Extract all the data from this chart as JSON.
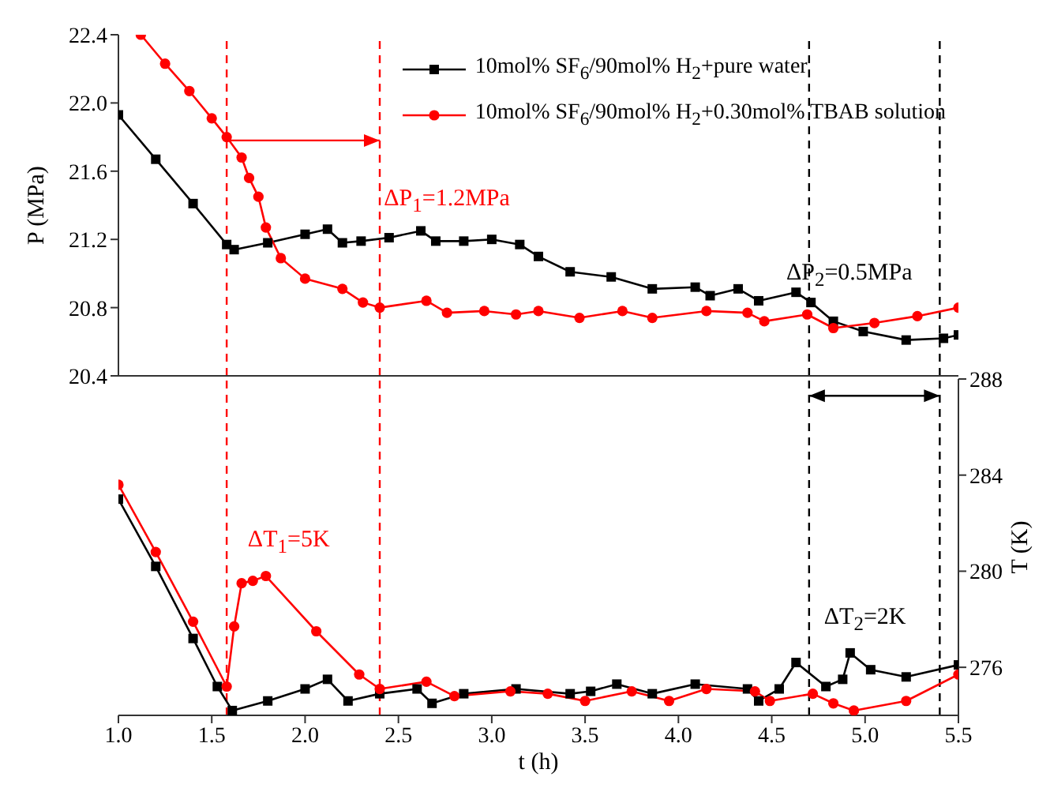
{
  "chart_data": [
    {
      "type": "line",
      "ylabel": "P (MPa)",
      "xlim": [
        1.0,
        5.5
      ],
      "xticks": [
        1,
        1.5,
        2,
        2.5,
        3,
        3.5,
        4,
        4.5,
        5,
        5.5
      ],
      "ylim": [
        20.4,
        22.4
      ],
      "yticks": [
        20.4,
        20.8,
        21.2,
        21.6,
        {
          "value": 22,
          "label": "22.0"
        },
        22.4
      ],
      "tick_labels": "y",
      "legend": "top right",
      "line_style": "solid",
      "series": [
        {
          "name": "10mol% SF$_{6}$/90mol% H$_{2}$+pure water",
          "color": "#000000",
          "marker": "square",
          "x": [
            1.0,
            1.2,
            1.4,
            1.58,
            1.62,
            1.8,
            2.0,
            2.12,
            2.2,
            2.3,
            2.45,
            2.62,
            2.7,
            2.85,
            3.0,
            3.15,
            3.25,
            3.42,
            3.64,
            3.86,
            4.09,
            4.17,
            4.32,
            4.43,
            4.63,
            4.71,
            4.83,
            4.99,
            5.22,
            5.42,
            5.5
          ],
          "values": [
            21.93,
            21.67,
            21.41,
            21.17,
            21.14,
            21.18,
            21.23,
            21.26,
            21.18,
            21.19,
            21.21,
            21.25,
            21.19,
            21.19,
            21.2,
            21.17,
            21.1,
            21.01,
            20.98,
            20.91,
            20.92,
            20.87,
            20.91,
            20.84,
            20.89,
            20.83,
            20.72,
            20.66,
            20.61,
            20.62,
            20.64
          ]
        },
        {
          "name": "10mol% SF$_{6}$/90mol% H$_{2}$+0.30mol% TBAB solution",
          "color": "#ff0000",
          "marker": "circle",
          "x": [
            1.12,
            1.25,
            1.38,
            1.5,
            1.58,
            1.66,
            1.7,
            1.75,
            1.79,
            1.87,
            2.0,
            2.2,
            2.31,
            2.4,
            2.65,
            2.76,
            2.96,
            3.13,
            3.25,
            3.47,
            3.7,
            3.86,
            4.15,
            4.37,
            4.46,
            4.69,
            4.83,
            5.05,
            5.28,
            5.5
          ],
          "values": [
            22.4,
            22.23,
            22.07,
            21.91,
            21.8,
            21.68,
            21.56,
            21.45,
            21.27,
            21.09,
            20.97,
            20.91,
            20.83,
            20.8,
            20.84,
            20.77,
            20.78,
            20.76,
            20.78,
            20.74,
            20.78,
            20.74,
            20.78,
            20.77,
            20.72,
            20.76,
            20.68,
            20.71,
            20.75,
            20.8
          ]
        }
      ],
      "ref_lines": [
        {
          "axis": "x",
          "value": 1.58,
          "color": "#ff0000",
          "line_style": "dashed"
        },
        {
          "axis": "x",
          "value": 2.4,
          "color": "#ff0000",
          "line_style": "dashed"
        },
        {
          "axis": "x",
          "value": 4.7,
          "color": "#000000",
          "line_style": "dashed"
        },
        {
          "axis": "x",
          "value": 5.4,
          "color": "#000000",
          "line_style": "dashed"
        }
      ],
      "annotations": [
        "ΔP$_{1}$=1.2MPa",
        "ΔP$_{2}$=0.5MPa"
      ]
    },
    {
      "type": "line",
      "xlabel": "t (h)",
      "y2label": "T (K)",
      "xlim": [
        1.0,
        5.5
      ],
      "xticks": [
        {
          "value": 1,
          "label": "1.0"
        },
        1.5,
        {
          "value": 2,
          "label": "2.0"
        },
        2.5,
        {
          "value": 3,
          "label": "3.0"
        },
        3.5,
        {
          "value": 4,
          "label": "4.0"
        },
        4.5,
        {
          "value": 5,
          "label": "5.0"
        },
        5.5
      ],
      "y2lim": [
        274,
        288
      ],
      "y2ticks": [
        276,
        280,
        284,
        288
      ],
      "line_style": "solid",
      "series": [
        {
          "color": "#000000",
          "marker": "square",
          "axis": "y2",
          "x": [
            1.0,
            1.2,
            1.4,
            1.53,
            1.61,
            1.8,
            2.0,
            2.12,
            2.23,
            2.4,
            2.6,
            2.68,
            2.85,
            3.13,
            3.42,
            3.53,
            3.67,
            3.86,
            4.09,
            4.37,
            4.43,
            4.54,
            4.63,
            4.79,
            4.88,
            4.92,
            5.03,
            5.22,
            5.5
          ],
          "values": [
            283.0,
            280.2,
            277.2,
            275.2,
            274.2,
            274.6,
            275.1,
            275.5,
            274.6,
            274.9,
            275.1,
            274.5,
            274.9,
            275.1,
            274.9,
            275.0,
            275.3,
            274.9,
            275.3,
            275.1,
            274.6,
            275.1,
            276.2,
            275.2,
            275.5,
            276.6,
            275.9,
            275.6,
            276.1
          ]
        },
        {
          "color": "#ff0000",
          "marker": "circle",
          "axis": "y2",
          "x": [
            1.0,
            1.2,
            1.4,
            1.58,
            1.62,
            1.66,
            1.72,
            1.79,
            2.06,
            2.29,
            2.4,
            2.65,
            2.8,
            3.1,
            3.3,
            3.5,
            3.75,
            3.95,
            4.15,
            4.41,
            4.49,
            4.72,
            4.83,
            4.94,
            5.22,
            5.5
          ],
          "values": [
            283.6,
            280.8,
            277.9,
            275.2,
            277.7,
            279.5,
            279.6,
            279.8,
            277.5,
            275.7,
            275.1,
            275.4,
            274.8,
            275.0,
            274.9,
            274.6,
            275.0,
            274.6,
            275.1,
            275.0,
            274.6,
            274.9,
            274.5,
            274.2,
            274.6,
            275.7
          ]
        }
      ],
      "ref_lines": [
        {
          "axis": "x",
          "value": 1.58,
          "color": "#ff0000",
          "line_style": "dashed"
        },
        {
          "axis": "x",
          "value": 2.4,
          "color": "#ff0000",
          "line_style": "dashed"
        },
        {
          "axis": "x",
          "value": 4.7,
          "color": "#000000",
          "line_style": "dashed"
        },
        {
          "axis": "x",
          "value": 5.4,
          "color": "#000000",
          "line_style": "dashed"
        }
      ],
      "annotations": [
        "ΔT$_{1}$=5K",
        "ΔT$_{2}$=2K"
      ]
    }
  ]
}
